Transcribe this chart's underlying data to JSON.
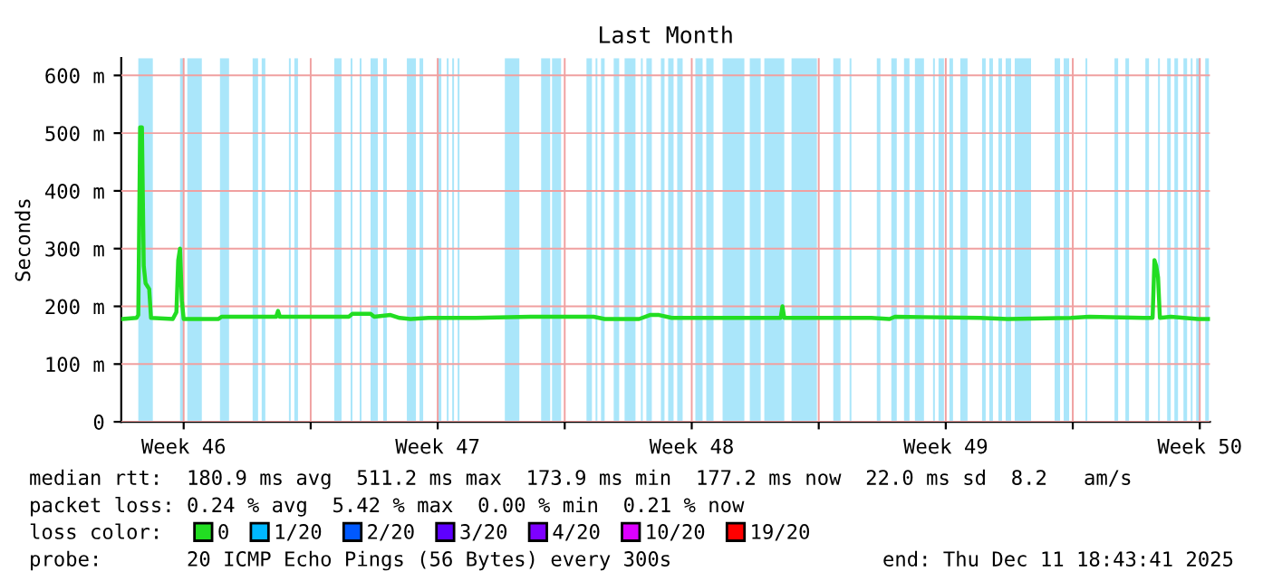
{
  "chart_data": {
    "type": "line",
    "title": "Last Month",
    "ylabel": "Seconds",
    "x": [
      "2025-11-11T19:12",
      "2025-11-12T04:48",
      "2025-11-12T06:00",
      "2025-11-12T07:12",
      "2025-11-12T08:24",
      "2025-11-12T09:36",
      "2025-11-12T10:48",
      "2025-11-12T13:12",
      "2025-11-12T14:24",
      "2025-11-13T04:48",
      "2025-11-13T07:12",
      "2025-11-13T08:24",
      "2025-11-13T09:36",
      "2025-11-13T10:48",
      "2025-11-13T12:00",
      "2025-11-14T10:48",
      "2025-11-14T13:12",
      "2025-11-16T01:12",
      "2025-11-16T02:24",
      "2025-11-16T03:36",
      "2025-11-18T01:12",
      "2025-11-18T03:36",
      "2025-11-18T15:36",
      "2025-11-18T18:00",
      "2025-11-19T04:48",
      "2025-11-19T10:48",
      "2025-11-19T18:00",
      "2025-11-20T06:00",
      "2025-11-21T13:12",
      "2025-11-23T01:12",
      "2025-11-23T19:12",
      "2025-11-24T19:12",
      "2025-11-25T02:24",
      "2025-11-26T01:12",
      "2025-11-26T08:24",
      "2025-11-26T14:24",
      "2025-11-26T22:48",
      "2025-11-29T22:48",
      "2025-11-30T00:00",
      "2025-11-30T01:12",
      "2025-12-02T10:48",
      "2025-12-02T22:48",
      "2025-12-03T02:24",
      "2025-12-05T10:48",
      "2025-12-06T04:48",
      "2025-12-07T22:48",
      "2025-12-08T10:48",
      "2025-12-09T22:48",
      "2025-12-10T04:48",
      "2025-12-10T06:00",
      "2025-12-10T07:12",
      "2025-12-10T08:24",
      "2025-12-10T09:36",
      "2025-12-10T16:48",
      "2025-12-11T10:48",
      "2025-12-11T18:00"
    ],
    "series": [
      {
        "name": "0",
        "color": "#22dd22",
        "values": [
          178,
          180,
          185,
          510,
          510,
          270,
          240,
          230,
          180,
          178,
          190,
          280,
          300,
          210,
          178,
          178,
          182,
          182,
          192,
          182,
          182,
          187,
          187,
          182,
          185,
          180,
          178,
          180,
          180,
          182,
          182,
          182,
          178,
          178,
          185,
          185,
          180,
          180,
          200,
          180,
          180,
          178,
          182,
          180,
          178,
          180,
          182,
          180,
          180,
          280,
          270,
          250,
          180,
          182,
          178,
          178
        ]
      },
      {
        "name": "1/20",
        "color": "#00b8ff",
        "values": [
          null,
          null,
          null,
          null,
          null,
          null,
          null,
          null,
          null,
          null,
          null,
          null,
          null,
          null,
          null,
          null,
          null,
          null,
          null,
          null,
          null,
          null,
          null,
          null,
          null,
          null,
          null,
          null,
          null,
          null,
          null,
          null,
          null,
          null,
          null,
          null,
          null,
          null,
          null,
          null,
          null,
          null,
          null,
          null,
          null,
          null,
          null,
          null,
          null,
          null,
          null,
          null,
          null,
          null,
          null,
          null
        ]
      },
      {
        "name": "2/20",
        "color": "#0059ff",
        "values": [
          null,
          null,
          null,
          null,
          null,
          null,
          null,
          null,
          null,
          null,
          null,
          null,
          null,
          null,
          null,
          null,
          null,
          null,
          null,
          null,
          null,
          null,
          null,
          null,
          null,
          null,
          null,
          null,
          null,
          null,
          null,
          null,
          null,
          null,
          null,
          null,
          null,
          null,
          null,
          null,
          null,
          null,
          null,
          null,
          null,
          null,
          null,
          null,
          null,
          null,
          null,
          null,
          null,
          null,
          null,
          null
        ]
      },
      {
        "name": "3/20",
        "color": "#5e00ff",
        "values": [
          null,
          null,
          null,
          null,
          null,
          null,
          null,
          null,
          null,
          null,
          null,
          null,
          null,
          null,
          null,
          null,
          null,
          null,
          null,
          null,
          null,
          null,
          null,
          null,
          null,
          null,
          null,
          null,
          null,
          null,
          null,
          null,
          null,
          null,
          null,
          null,
          null,
          null,
          null,
          null,
          null,
          null,
          null,
          null,
          null,
          null,
          null,
          null,
          null,
          null,
          null,
          null,
          null,
          null,
          null,
          null
        ]
      },
      {
        "name": "4/20",
        "color": "#7e00ff",
        "values": [
          null,
          null,
          null,
          null,
          null,
          null,
          null,
          null,
          null,
          null,
          null,
          null,
          null,
          null,
          null,
          null,
          null,
          null,
          null,
          null,
          null,
          null,
          null,
          null,
          null,
          null,
          null,
          null,
          null,
          null,
          null,
          null,
          null,
          null,
          null,
          null,
          null,
          null,
          null,
          null,
          null,
          null,
          null,
          null,
          null,
          null,
          null,
          null,
          null,
          null,
          null,
          null,
          null,
          null,
          null,
          null
        ]
      },
      {
        "name": "10/20",
        "color": "#dd00ff",
        "values": [
          null,
          null,
          null,
          null,
          null,
          null,
          null,
          null,
          null,
          null,
          null,
          null,
          null,
          null,
          null,
          null,
          null,
          null,
          null,
          null,
          null,
          null,
          null,
          null,
          null,
          null,
          null,
          null,
          null,
          null,
          null,
          null,
          null,
          null,
          null,
          null,
          null,
          null,
          null,
          null,
          null,
          null,
          null,
          null,
          null,
          null,
          null,
          null,
          null,
          null,
          null,
          null,
          null,
          null,
          null,
          null
        ]
      },
      {
        "name": "19/20",
        "color": "#ff0000",
        "values": [
          null,
          null,
          null,
          null,
          null,
          null,
          null,
          null,
          null,
          null,
          null,
          null,
          null,
          null,
          null,
          null,
          null,
          null,
          null,
          null,
          null,
          null,
          null,
          null,
          null,
          null,
          null,
          null,
          null,
          null,
          null,
          null,
          null,
          null,
          null,
          null,
          null,
          null,
          null,
          null,
          null,
          null,
          null,
          null,
          null,
          null,
          null,
          null,
          null,
          null,
          null,
          null,
          null,
          null,
          null,
          null
        ]
      }
    ],
    "legend": "bottom",
    "legend_title": "loss color:",
    "xlim": [
      "2025-11-11T18:43",
      "2025-12-11T18:43"
    ],
    "ylim": [
      0,
      630
    ],
    "xticks": [
      {
        "value": "2025-11-13T12:00",
        "label": "Week 46"
      },
      {
        "value": "2025-11-17",
        "label": null
      },
      {
        "value": "2025-11-20T12:00",
        "label": "Week 47"
      },
      {
        "value": "2025-11-24",
        "label": null
      },
      {
        "value": "2025-11-27T12:00",
        "label": "Week 48"
      },
      {
        "value": "2025-12-01",
        "label": null
      },
      {
        "value": "2025-12-04T12:00",
        "label": "Week 49"
      },
      {
        "value": "2025-12-08",
        "label": null
      },
      {
        "value": "2025-12-11T12:00",
        "label": "Week 50"
      }
    ],
    "yticks": [
      0,
      {
        "value": 100,
        "label": "100 m"
      },
      {
        "value": 200,
        "label": "200 m"
      },
      {
        "value": 300,
        "label": "300 m"
      },
      {
        "value": 400,
        "label": "400 m"
      },
      {
        "value": 500,
        "label": "500 m"
      },
      {
        "value": 600,
        "label": "600 m"
      }
    ],
    "grid": true,
    "marker": "none",
    "line_style": "solid",
    "bands": [
      {
        "axis": "x",
        "from": "2025-11-12T06:00",
        "to": "2025-11-12T15:36",
        "color": "#aae6fa"
      },
      {
        "axis": "x",
        "from": "2025-11-13T09:36",
        "to": "2025-11-13T12:00",
        "color": "#aae6fa"
      },
      {
        "axis": "x",
        "from": "2025-11-13T14:24",
        "to": "2025-11-14T00:00",
        "color": "#aae6fa"
      },
      {
        "axis": "x",
        "from": "2025-11-14T12:00",
        "to": "2025-11-14T18:00",
        "color": "#aae6fa"
      },
      {
        "axis": "x",
        "from": "2025-11-15T09:36",
        "to": "2025-11-15T13:12",
        "color": "#aae6fa"
      },
      {
        "axis": "x",
        "from": "2025-11-15T15:36",
        "to": "2025-11-15T18:00",
        "color": "#aae6fa"
      },
      {
        "axis": "x",
        "from": "2025-11-16T09:36",
        "to": "2025-11-16T10:48",
        "color": "#aae6fa"
      },
      {
        "axis": "x",
        "from": "2025-11-16T13:12",
        "to": "2025-11-16T15:36",
        "color": "#aae6fa"
      },
      {
        "axis": "x",
        "from": "2025-11-17T15:36",
        "to": "2025-11-17T20:24",
        "color": "#aae6fa"
      },
      {
        "axis": "x",
        "from": "2025-11-18T02:24",
        "to": "2025-11-18T03:36",
        "color": "#aae6fa"
      },
      {
        "axis": "x",
        "from": "2025-11-18T08:24",
        "to": "2025-11-18T09:36",
        "color": "#aae6fa"
      },
      {
        "axis": "x",
        "from": "2025-11-18T15:36",
        "to": "2025-11-18T20:24",
        "color": "#aae6fa"
      },
      {
        "axis": "x",
        "from": "2025-11-19T00:00",
        "to": "2025-11-19T02:24",
        "color": "#aae6fa"
      },
      {
        "axis": "x",
        "from": "2025-11-19T15:36",
        "to": "2025-11-19T21:36",
        "color": "#aae6fa"
      },
      {
        "axis": "x",
        "from": "2025-11-20T00:00",
        "to": "2025-11-20T02:24",
        "color": "#aae6fa"
      },
      {
        "axis": "x",
        "from": "2025-11-20T12:00",
        "to": "2025-11-20T14:24",
        "color": "#aae6fa"
      },
      {
        "axis": "x",
        "from": "2025-11-20T18:00",
        "to": "2025-11-20T19:12",
        "color": "#aae6fa"
      },
      {
        "axis": "x",
        "from": "2025-11-20T21:36",
        "to": "2025-11-20T22:48",
        "color": "#aae6fa"
      },
      {
        "axis": "x",
        "from": "2025-11-21T01:12",
        "to": "2025-11-21T02:24",
        "color": "#aae6fa"
      },
      {
        "axis": "x",
        "from": "2025-11-22T08:24",
        "to": "2025-11-22T18:00",
        "color": "#aae6fa"
      },
      {
        "axis": "x",
        "from": "2025-11-23T08:24",
        "to": "2025-11-23T14:24",
        "color": "#aae6fa"
      },
      {
        "axis": "x",
        "from": "2025-11-23T15:36",
        "to": "2025-11-23T21:36",
        "color": "#aae6fa"
      },
      {
        "axis": "x",
        "from": "2025-11-24T14:24",
        "to": "2025-11-24T18:00",
        "color": "#aae6fa"
      },
      {
        "axis": "x",
        "from": "2025-11-24T20:24",
        "to": "2025-11-24T21:36",
        "color": "#aae6fa"
      },
      {
        "axis": "x",
        "from": "2025-11-25T00:00",
        "to": "2025-11-25T02:24",
        "color": "#aae6fa"
      },
      {
        "axis": "x",
        "from": "2025-11-25T08:24",
        "to": "2025-11-25T12:00",
        "color": "#aae6fa"
      },
      {
        "axis": "x",
        "from": "2025-11-25T15:36",
        "to": "2025-11-25T22:48",
        "color": "#aae6fa"
      },
      {
        "axis": "x",
        "from": "2025-11-26T02:24",
        "to": "2025-11-26T03:36",
        "color": "#aae6fa"
      },
      {
        "axis": "x",
        "from": "2025-11-26T06:00",
        "to": "2025-11-26T09:36",
        "color": "#aae6fa"
      },
      {
        "axis": "x",
        "from": "2025-11-26T15:36",
        "to": "2025-11-26T18:00",
        "color": "#aae6fa"
      },
      {
        "axis": "x",
        "from": "2025-11-26T20:24",
        "to": "2025-11-27T00:00",
        "color": "#aae6fa"
      },
      {
        "axis": "x",
        "from": "2025-11-27T02:24",
        "to": "2025-11-27T06:00",
        "color": "#aae6fa"
      },
      {
        "axis": "x",
        "from": "2025-11-27T14:24",
        "to": "2025-11-27T19:12",
        "color": "#aae6fa"
      },
      {
        "axis": "x",
        "from": "2025-11-27T21:36",
        "to": "2025-11-28T02:24",
        "color": "#aae6fa"
      },
      {
        "axis": "x",
        "from": "2025-11-28T08:24",
        "to": "2025-11-28T22:48",
        "color": "#aae6fa"
      },
      {
        "axis": "x",
        "from": "2025-11-29T02:24",
        "to": "2025-11-29T09:36",
        "color": "#aae6fa"
      },
      {
        "axis": "x",
        "from": "2025-11-29T12:00",
        "to": "2025-11-30T01:12",
        "color": "#aae6fa"
      },
      {
        "axis": "x",
        "from": "2025-11-30T06:00",
        "to": "2025-11-30T22:48",
        "color": "#aae6fa"
      },
      {
        "axis": "x",
        "from": "2025-12-01T09:36",
        "to": "2025-12-01T14:24",
        "color": "#aae6fa"
      },
      {
        "axis": "x",
        "from": "2025-12-01T20:24",
        "to": "2025-12-01T21:36",
        "color": "#aae6fa"
      },
      {
        "axis": "x",
        "from": "2025-12-02T14:24",
        "to": "2025-12-02T16:48",
        "color": "#aae6fa"
      },
      {
        "axis": "x",
        "from": "2025-12-03T00:00",
        "to": "2025-12-03T03:36",
        "color": "#aae6fa"
      },
      {
        "axis": "x",
        "from": "2025-12-03T08:24",
        "to": "2025-12-03T12:00",
        "color": "#aae6fa"
      },
      {
        "axis": "x",
        "from": "2025-12-03T15:36",
        "to": "2025-12-03T21:36",
        "color": "#aae6fa"
      },
      {
        "axis": "x",
        "from": "2025-12-04T03:36",
        "to": "2025-12-04T04:48",
        "color": "#aae6fa"
      },
      {
        "axis": "x",
        "from": "2025-12-04T07:12",
        "to": "2025-12-04T10:48",
        "color": "#aae6fa"
      },
      {
        "axis": "x",
        "from": "2025-12-04T14:24",
        "to": "2025-12-04T16:48",
        "color": "#aae6fa"
      },
      {
        "axis": "x",
        "from": "2025-12-04T21:36",
        "to": "2025-12-05T02:24",
        "color": "#aae6fa"
      },
      {
        "axis": "x",
        "from": "2025-12-05T12:00",
        "to": "2025-12-05T14:24",
        "color": "#aae6fa"
      },
      {
        "axis": "x",
        "from": "2025-12-05T16:48",
        "to": "2025-12-05T19:12",
        "color": "#aae6fa"
      },
      {
        "axis": "x",
        "from": "2025-12-05T22:48",
        "to": "2025-12-06T01:12",
        "color": "#aae6fa"
      },
      {
        "axis": "x",
        "from": "2025-12-06T03:36",
        "to": "2025-12-06T07:12",
        "color": "#aae6fa"
      },
      {
        "axis": "x",
        "from": "2025-12-06T09:36",
        "to": "2025-12-06T20:24",
        "color": "#aae6fa"
      },
      {
        "axis": "x",
        "from": "2025-12-07T12:00",
        "to": "2025-12-07T15:36",
        "color": "#aae6fa"
      },
      {
        "axis": "x",
        "from": "2025-12-07T18:00",
        "to": "2025-12-07T21:36",
        "color": "#aae6fa"
      },
      {
        "axis": "x",
        "from": "2025-12-08T08:24",
        "to": "2025-12-08T09:36",
        "color": "#aae6fa"
      },
      {
        "axis": "x",
        "from": "2025-12-09T03:36",
        "to": "2025-12-09T06:00",
        "color": "#aae6fa"
      },
      {
        "axis": "x",
        "from": "2025-12-09T10:48",
        "to": "2025-12-09T13:12",
        "color": "#aae6fa"
      },
      {
        "axis": "x",
        "from": "2025-12-10T00:00",
        "to": "2025-12-10T02:24",
        "color": "#aae6fa"
      },
      {
        "axis": "x",
        "from": "2025-12-10T08:24",
        "to": "2025-12-10T09:36",
        "color": "#aae6fa"
      },
      {
        "axis": "x",
        "from": "2025-12-10T14:24",
        "to": "2025-12-10T16:48",
        "color": "#aae6fa"
      },
      {
        "axis": "x",
        "from": "2025-12-10T19:12",
        "to": "2025-12-10T21:36",
        "color": "#aae6fa"
      },
      {
        "axis": "x",
        "from": "2025-12-11T01:12",
        "to": "2025-12-11T03:36",
        "color": "#aae6fa"
      },
      {
        "axis": "x",
        "from": "2025-12-11T06:00",
        "to": "2025-12-11T07:12",
        "color": "#aae6fa"
      },
      {
        "axis": "x",
        "from": "2025-12-11T09:36",
        "to": "2025-12-11T12:00",
        "color": "#aae6fa"
      },
      {
        "axis": "x",
        "from": "2025-12-11T15:36",
        "to": "2025-12-11T18:00",
        "color": "#aae6fa"
      }
    ],
    "annotations": [
      "median rtt:  180.9 ms avg  511.2 ms max  173.9 ms min  177.2 ms now  22.0 ms sd  8.2   am/s",
      "packet loss: 0.24 % avg  5.42 % max  0.00 % min  0.21 % now",
      "probe:       20 ICMP Echo Pings (56 Bytes) every 300s",
      "end: Thu Dec 11 18:43:41 2025"
    ]
  }
}
